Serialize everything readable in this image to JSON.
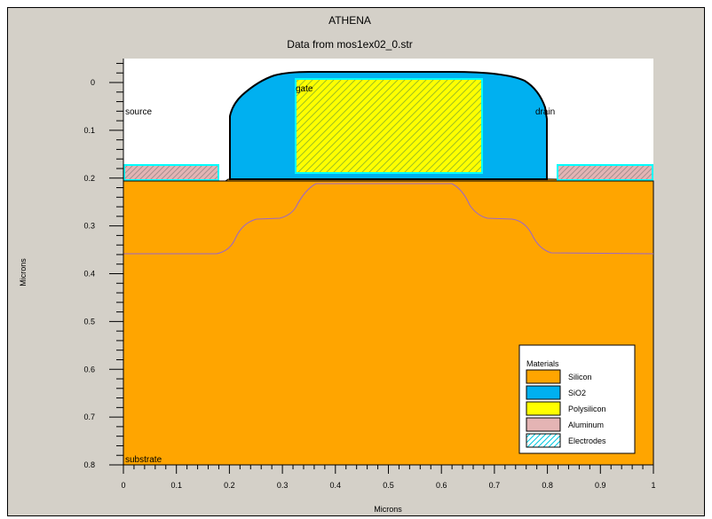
{
  "header": {
    "app_title": "ATHENA",
    "subtitle": "Data from mos1ex02_0.str"
  },
  "axes": {
    "xlabel": "Microns",
    "ylabel": "Microns",
    "x_ticks": [
      "0",
      "0.1",
      "0.2",
      "0.3",
      "0.4",
      "0.5",
      "0.6",
      "0.7",
      "0.8",
      "0.9",
      "1"
    ],
    "y_ticks": [
      "0",
      "0.1",
      "0.2",
      "0.3",
      "0.4",
      "0.5",
      "0.6",
      "0.7",
      "0.8"
    ],
    "xlim": [
      0,
      1
    ],
    "ylim": [
      0,
      0.8
    ]
  },
  "labels": {
    "gate": "gate",
    "source": "source",
    "drain": "drain",
    "substrate": "substrate"
  },
  "legend": {
    "title": "Materials",
    "items": [
      {
        "label": "Silicon",
        "color": "#ffa500"
      },
      {
        "label": "SiO2",
        "color": "#00b0f0"
      },
      {
        "label": "Polysilicon",
        "color": "#ffff00"
      },
      {
        "label": "Aluminum",
        "color": "#e4b4b4"
      },
      {
        "label": "Electrodes",
        "color": "#00ffff"
      }
    ]
  },
  "colors": {
    "frame_bg": "#d4d0c8",
    "silicon": "#ffa500",
    "sio2": "#00b0f0",
    "polysilicon": "#ffff00",
    "aluminum": "#e4b4b4",
    "electrode": "#00ffff",
    "junction": "#9966cc"
  }
}
